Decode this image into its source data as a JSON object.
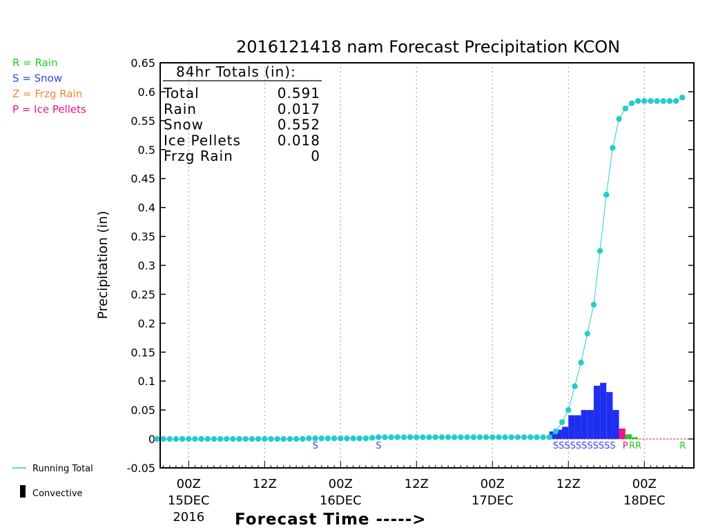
{
  "chart_data": {
    "type": "bar",
    "title": "2016121418 nam Forecast Precipitation KCON",
    "ylabel": "Precipitation (in)",
    "xlabel": "Forecast Time ----->",
    "ylim": [
      -0.05,
      0.65
    ],
    "y_ticks": [
      "0.65",
      "0.6",
      "0.55",
      "0.5",
      "0.45",
      "0.4",
      "0.35",
      "0.3",
      "0.25",
      "0.2",
      "0.15",
      "0.1",
      "0.05",
      "0",
      "-0.05"
    ],
    "x_ticks": [
      {
        "hour": 6,
        "top": "00Z",
        "bottom": "15DEC",
        "extra": "2016"
      },
      {
        "hour": 18,
        "top": "12Z",
        "bottom": ""
      },
      {
        "hour": 30,
        "top": "00Z",
        "bottom": "16DEC"
      },
      {
        "hour": 42,
        "top": "12Z",
        "bottom": ""
      },
      {
        "hour": 54,
        "top": "00Z",
        "bottom": "17DEC"
      },
      {
        "hour": 66,
        "top": "12Z",
        "bottom": ""
      },
      {
        "hour": 78,
        "top": "00Z",
        "bottom": "18DEC"
      }
    ],
    "legend": [
      {
        "label": "R = Rain",
        "color": "#22cc22"
      },
      {
        "label": "S = Snow",
        "color": "#3344ee"
      },
      {
        "label": "Z = Frzg Rain",
        "color": "#ee8833"
      },
      {
        "label": "P = Ice Pellets",
        "color": "#ee1188"
      }
    ],
    "legend_bottom": [
      {
        "label": "Running Total",
        "color": "#22cccc"
      },
      {
        "label": "Convective",
        "color": "#000000"
      }
    ],
    "totals": {
      "header": "84hr Totals (in):",
      "rows": [
        {
          "label": "Total",
          "value": "0.591"
        },
        {
          "label": "Rain",
          "value": "0.017"
        },
        {
          "label": "Snow",
          "value": "0.552"
        },
        {
          "label": "Ice Pellets",
          "value": "0.018"
        },
        {
          "label": "Frzg Rain",
          "value": "0"
        }
      ]
    },
    "bars": [
      {
        "hour": 64,
        "value": 0.013,
        "type": "snow"
      },
      {
        "hour": 65,
        "value": 0.016,
        "type": "snow"
      },
      {
        "hour": 66,
        "value": 0.021,
        "type": "snow"
      },
      {
        "hour": 67,
        "value": 0.041,
        "type": "snow"
      },
      {
        "hour": 68,
        "value": 0.041,
        "type": "snow"
      },
      {
        "hour": 69,
        "value": 0.05,
        "type": "snow"
      },
      {
        "hour": 70,
        "value": 0.05,
        "type": "snow"
      },
      {
        "hour": 71,
        "value": 0.092,
        "type": "snow"
      },
      {
        "hour": 72,
        "value": 0.097,
        "type": "snow"
      },
      {
        "hour": 73,
        "value": 0.081,
        "type": "snow"
      },
      {
        "hour": 74,
        "value": 0.05,
        "type": "snow"
      },
      {
        "hour": 75,
        "value": 0.018,
        "type": "ice"
      },
      {
        "hour": 76,
        "value": 0.008,
        "type": "rain"
      },
      {
        "hour": 77,
        "value": 0.003,
        "type": "rain"
      }
    ],
    "running_total": {
      "hours": [
        1,
        2,
        3,
        4,
        5,
        6,
        7,
        8,
        9,
        10,
        11,
        12,
        13,
        14,
        15,
        16,
        17,
        18,
        19,
        20,
        21,
        22,
        23,
        24,
        25,
        26,
        27,
        28,
        29,
        30,
        31,
        32,
        33,
        34,
        35,
        36,
        37,
        38,
        39,
        40,
        41,
        42,
        43,
        44,
        45,
        46,
        47,
        48,
        49,
        50,
        51,
        52,
        53,
        54,
        55,
        56,
        57,
        58,
        59,
        60,
        61,
        62,
        63,
        64,
        65,
        66,
        67,
        68,
        69,
        70,
        71,
        72,
        73,
        74,
        75,
        76,
        77,
        78,
        79,
        80,
        81,
        82,
        83,
        84
      ],
      "values": [
        0,
        0,
        0,
        0,
        0,
        0,
        0,
        0,
        0,
        0,
        0,
        0,
        0,
        0,
        0,
        0,
        0,
        0,
        0,
        0,
        0,
        0,
        0,
        0,
        0.001,
        0.001,
        0.001,
        0.001,
        0.001,
        0.001,
        0.001,
        0.001,
        0.001,
        0.001,
        0.002,
        0.003,
        0.003,
        0.003,
        0.003,
        0.003,
        0.003,
        0.003,
        0.003,
        0.003,
        0.003,
        0.003,
        0.003,
        0.003,
        0.003,
        0.003,
        0.003,
        0.003,
        0.003,
        0.003,
        0.003,
        0.003,
        0.003,
        0.003,
        0.003,
        0.003,
        0.003,
        0.003,
        0.003,
        0.013,
        0.029,
        0.05,
        0.091,
        0.132,
        0.182,
        0.232,
        0.325,
        0.422,
        0.503,
        0.553,
        0.571,
        0.58,
        0.584,
        0.584,
        0.584,
        0.584,
        0.584,
        0.584,
        0.584,
        0.59
      ]
    },
    "ptype_labels": [
      {
        "hour": 26,
        "text": "S",
        "color": "#3344ee"
      },
      {
        "hour": 36,
        "text": "S",
        "color": "#3344ee"
      },
      {
        "hour": 64,
        "text": "SSSSSSSSSSS",
        "color": "#3344ee"
      },
      {
        "hour": 75,
        "text": "P",
        "color": "#ee1188"
      },
      {
        "hour": 76,
        "text": "RR",
        "color": "#22cc22"
      },
      {
        "hour": 84,
        "text": "R",
        "color": "#22cc22"
      }
    ]
  }
}
